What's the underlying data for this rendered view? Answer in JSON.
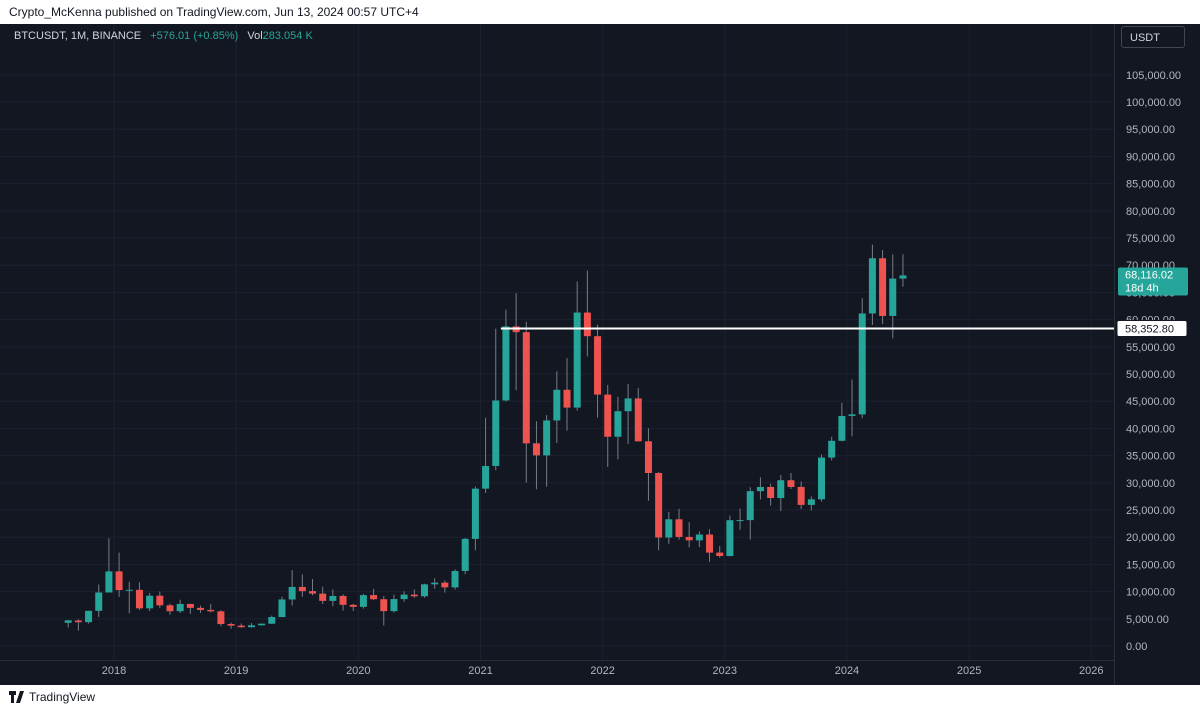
{
  "header": {
    "publisher_line": "Crypto_McKenna published on TradingView.com, Jun 13, 2024 00:57 UTC+4"
  },
  "legend": {
    "symbol": "BTCUSDT, 1M, BINANCE",
    "change": "+576.01 (+0.85%)",
    "vol_label": "Vol",
    "vol_value": "283.054 K"
  },
  "price_scale": {
    "currency": "USDT",
    "last_price_label": "68,116.02",
    "countdown_label": "18d 4h",
    "hline_label": "58,352.80"
  },
  "footer": {
    "brand": "TradingView"
  },
  "colors": {
    "background": "#131722",
    "up": "#26a69a",
    "down": "#ef5350",
    "hline": "#ffffff"
  },
  "chart_data": {
    "type": "candlestick",
    "symbol": "BTCUSDT",
    "interval": "1M",
    "exchange": "BINANCE",
    "ylim": [
      -2000,
      110000
    ],
    "y_ticks": [
      0,
      5000,
      10000,
      15000,
      20000,
      25000,
      30000,
      35000,
      40000,
      45000,
      50000,
      55000,
      60000,
      65000,
      70000,
      75000,
      80000,
      85000,
      90000,
      95000,
      100000,
      105000
    ],
    "y_tick_labels": [
      "0.00",
      "5,000.00",
      "10,000.00",
      "15,000.00",
      "20,000.00",
      "25,000.00",
      "30,000.00",
      "35,000.00",
      "40,000.00",
      "45,000.00",
      "50,000.00",
      "55,000.00",
      "60,000.00",
      "65,000.00",
      "70,000.00",
      "75,000.00",
      "80,000.00",
      "85,000.00",
      "90,000.00",
      "95,000.00",
      "100,000.00",
      "105,000.00"
    ],
    "x_ticks": [
      "2018",
      "2019",
      "2020",
      "2021",
      "2022",
      "2023",
      "2024",
      "2025",
      "2026"
    ],
    "grid": true,
    "horizontal_line": 58352.8,
    "hline_start": "2021-03",
    "x_end": "2026-06",
    "candles": [
      {
        "t": "2017-08",
        "o": 4261,
        "h": 4745,
        "l": 3400,
        "c": 4724
      },
      {
        "t": "2017-09",
        "o": 4689,
        "h": 4939,
        "l": 2817,
        "c": 4378
      },
      {
        "t": "2017-10",
        "o": 4378,
        "h": 6470,
        "l": 4110,
        "c": 6463
      },
      {
        "t": "2017-11",
        "o": 6463,
        "h": 11300,
        "l": 5325,
        "c": 9838
      },
      {
        "t": "2017-12",
        "o": 9838,
        "h": 19798,
        "l": 10800,
        "c": 13716
      },
      {
        "t": "2018-01",
        "o": 13716,
        "h": 17176,
        "l": 9035,
        "c": 10285
      },
      {
        "t": "2018-02",
        "o": 10285,
        "h": 11786,
        "l": 6000,
        "c": 10326
      },
      {
        "t": "2018-03",
        "o": 10326,
        "h": 11710,
        "l": 6600,
        "c": 6923
      },
      {
        "t": "2018-04",
        "o": 6923,
        "h": 9759,
        "l": 6430,
        "c": 9246
      },
      {
        "t": "2018-05",
        "o": 9246,
        "h": 10020,
        "l": 7032,
        "c": 7485
      },
      {
        "t": "2018-06",
        "o": 7485,
        "h": 7786,
        "l": 5750,
        "c": 6391
      },
      {
        "t": "2018-07",
        "o": 6391,
        "h": 8507,
        "l": 6070,
        "c": 7730
      },
      {
        "t": "2018-08",
        "o": 7730,
        "h": 7760,
        "l": 5880,
        "c": 7011
      },
      {
        "t": "2018-09",
        "o": 7011,
        "h": 7410,
        "l": 6100,
        "c": 6626
      },
      {
        "t": "2018-10",
        "o": 6626,
        "h": 7680,
        "l": 6200,
        "c": 6371
      },
      {
        "t": "2018-11",
        "o": 6371,
        "h": 6600,
        "l": 3652,
        "c": 4041
      },
      {
        "t": "2018-12",
        "o": 4041,
        "h": 4313,
        "l": 3156,
        "c": 3742
      },
      {
        "t": "2019-01",
        "o": 3742,
        "h": 4140,
        "l": 3349,
        "c": 3458
      },
      {
        "t": "2019-02",
        "o": 3458,
        "h": 4210,
        "l": 3373,
        "c": 3813
      },
      {
        "t": "2019-03",
        "o": 3813,
        "h": 4120,
        "l": 3740,
        "c": 4106
      },
      {
        "t": "2019-04",
        "o": 4106,
        "h": 5600,
        "l": 4051,
        "c": 5321
      },
      {
        "t": "2019-05",
        "o": 5321,
        "h": 9074,
        "l": 5318,
        "c": 8555
      },
      {
        "t": "2019-06",
        "o": 8555,
        "h": 13970,
        "l": 7444,
        "c": 10855
      },
      {
        "t": "2019-07",
        "o": 10855,
        "h": 13147,
        "l": 9050,
        "c": 10085
      },
      {
        "t": "2019-08",
        "o": 10085,
        "h": 12325,
        "l": 9320,
        "c": 9630
      },
      {
        "t": "2019-09",
        "o": 9630,
        "h": 10905,
        "l": 7710,
        "c": 8293
      },
      {
        "t": "2019-10",
        "o": 8293,
        "h": 10370,
        "l": 7300,
        "c": 9199
      },
      {
        "t": "2019-11",
        "o": 9199,
        "h": 9505,
        "l": 6515,
        "c": 7569
      },
      {
        "t": "2019-12",
        "o": 7569,
        "h": 7750,
        "l": 6435,
        "c": 7195
      },
      {
        "t": "2020-01",
        "o": 7195,
        "h": 9578,
        "l": 6871,
        "c": 9352
      },
      {
        "t": "2020-02",
        "o": 9352,
        "h": 10500,
        "l": 8450,
        "c": 8600
      },
      {
        "t": "2020-03",
        "o": 8600,
        "h": 9188,
        "l": 3782,
        "c": 6410
      },
      {
        "t": "2020-04",
        "o": 6410,
        "h": 9460,
        "l": 6150,
        "c": 8624
      },
      {
        "t": "2020-05",
        "o": 8624,
        "h": 10067,
        "l": 8117,
        "c": 9446
      },
      {
        "t": "2020-06",
        "o": 9446,
        "h": 10380,
        "l": 8833,
        "c": 9138
      },
      {
        "t": "2020-07",
        "o": 9138,
        "h": 11444,
        "l": 8893,
        "c": 11335
      },
      {
        "t": "2020-08",
        "o": 11335,
        "h": 12468,
        "l": 10518,
        "c": 11649
      },
      {
        "t": "2020-09",
        "o": 11649,
        "h": 12050,
        "l": 9825,
        "c": 10776
      },
      {
        "t": "2020-10",
        "o": 10776,
        "h": 14100,
        "l": 10371,
        "c": 13791
      },
      {
        "t": "2020-11",
        "o": 13791,
        "h": 19863,
        "l": 13195,
        "c": 19695
      },
      {
        "t": "2020-12",
        "o": 19695,
        "h": 29300,
        "l": 17572,
        "c": 28923
      },
      {
        "t": "2021-01",
        "o": 28923,
        "h": 41950,
        "l": 28130,
        "c": 33092
      },
      {
        "t": "2021-02",
        "o": 33092,
        "h": 58352,
        "l": 32296,
        "c": 45135
      },
      {
        "t": "2021-03",
        "o": 45135,
        "h": 61844,
        "l": 44950,
        "c": 58740
      },
      {
        "t": "2021-04",
        "o": 58740,
        "h": 64854,
        "l": 47044,
        "c": 57694
      },
      {
        "t": "2021-05",
        "o": 57694,
        "h": 59592,
        "l": 30000,
        "c": 37254
      },
      {
        "t": "2021-06",
        "o": 37254,
        "h": 41330,
        "l": 28805,
        "c": 35045
      },
      {
        "t": "2021-07",
        "o": 35045,
        "h": 42448,
        "l": 29278,
        "c": 41461
      },
      {
        "t": "2021-08",
        "o": 41461,
        "h": 50500,
        "l": 37332,
        "c": 47100
      },
      {
        "t": "2021-09",
        "o": 47100,
        "h": 52920,
        "l": 39600,
        "c": 43824
      },
      {
        "t": "2021-10",
        "o": 43824,
        "h": 67000,
        "l": 43283,
        "c": 61299
      },
      {
        "t": "2021-11",
        "o": 61299,
        "h": 69000,
        "l": 53256,
        "c": 56950
      },
      {
        "t": "2021-12",
        "o": 56950,
        "h": 59053,
        "l": 42000,
        "c": 46217
      },
      {
        "t": "2022-01",
        "o": 46217,
        "h": 47990,
        "l": 32917,
        "c": 38466
      },
      {
        "t": "2022-02",
        "o": 38466,
        "h": 45821,
        "l": 34322,
        "c": 43160
      },
      {
        "t": "2022-03",
        "o": 43160,
        "h": 48189,
        "l": 37155,
        "c": 45510
      },
      {
        "t": "2022-04",
        "o": 45510,
        "h": 47444,
        "l": 37578,
        "c": 37630
      },
      {
        "t": "2022-05",
        "o": 37630,
        "h": 40023,
        "l": 26700,
        "c": 31801
      },
      {
        "t": "2022-06",
        "o": 31801,
        "h": 31982,
        "l": 17622,
        "c": 19942
      },
      {
        "t": "2022-07",
        "o": 19942,
        "h": 24668,
        "l": 18781,
        "c": 23293
      },
      {
        "t": "2022-08",
        "o": 23293,
        "h": 25211,
        "l": 19520,
        "c": 20050
      },
      {
        "t": "2022-09",
        "o": 20050,
        "h": 22799,
        "l": 18125,
        "c": 19423
      },
      {
        "t": "2022-10",
        "o": 19423,
        "h": 21085,
        "l": 18190,
        "c": 20490
      },
      {
        "t": "2022-11",
        "o": 20490,
        "h": 21480,
        "l": 15476,
        "c": 17164
      },
      {
        "t": "2022-12",
        "o": 17164,
        "h": 18387,
        "l": 16256,
        "c": 16542
      },
      {
        "t": "2023-01",
        "o": 16542,
        "h": 23960,
        "l": 16499,
        "c": 23125
      },
      {
        "t": "2023-02",
        "o": 23125,
        "h": 25250,
        "l": 21351,
        "c": 23141
      },
      {
        "t": "2023-03",
        "o": 23141,
        "h": 29184,
        "l": 19549,
        "c": 28465
      },
      {
        "t": "2023-04",
        "o": 28465,
        "h": 31000,
        "l": 26942,
        "c": 29233
      },
      {
        "t": "2023-05",
        "o": 29233,
        "h": 29820,
        "l": 25811,
        "c": 27210
      },
      {
        "t": "2023-06",
        "o": 27210,
        "h": 31431,
        "l": 24800,
        "c": 30472
      },
      {
        "t": "2023-07",
        "o": 30472,
        "h": 31804,
        "l": 28861,
        "c": 29232
      },
      {
        "t": "2023-08",
        "o": 29232,
        "h": 30244,
        "l": 25166,
        "c": 25940
      },
      {
        "t": "2023-09",
        "o": 25940,
        "h": 27483,
        "l": 24900,
        "c": 26962
      },
      {
        "t": "2023-10",
        "o": 26962,
        "h": 35198,
        "l": 26538,
        "c": 34639
      },
      {
        "t": "2023-11",
        "o": 34639,
        "h": 38450,
        "l": 34097,
        "c": 37723
      },
      {
        "t": "2023-12",
        "o": 37723,
        "h": 44700,
        "l": 37615,
        "c": 42283
      },
      {
        "t": "2024-01",
        "o": 42283,
        "h": 48969,
        "l": 38555,
        "c": 42580
      },
      {
        "t": "2024-02",
        "o": 42580,
        "h": 63913,
        "l": 41884,
        "c": 61130
      },
      {
        "t": "2024-03",
        "o": 61130,
        "h": 73777,
        "l": 59005,
        "c": 71280
      },
      {
        "t": "2024-04",
        "o": 71280,
        "h": 72797,
        "l": 59191,
        "c": 60672
      },
      {
        "t": "2024-05",
        "o": 60672,
        "h": 71979,
        "l": 56552,
        "c": 67540
      },
      {
        "t": "2024-06",
        "o": 67540,
        "h": 71997,
        "l": 66051,
        "c": 68116
      }
    ]
  }
}
